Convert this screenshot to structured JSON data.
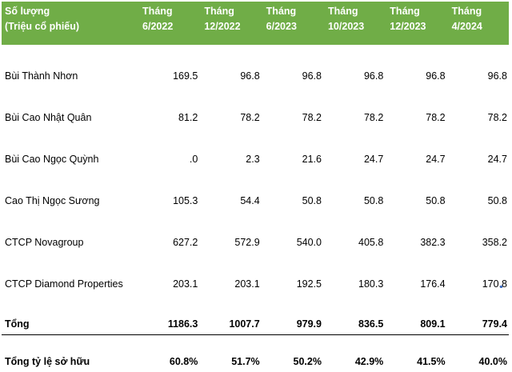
{
  "header": {
    "label_line1": "Số lượng",
    "label_line2": "(Triệu cổ phiếu)",
    "columns": [
      {
        "line1": "Tháng",
        "line2": "6/2022"
      },
      {
        "line1": "Tháng",
        "line2": "12/2022"
      },
      {
        "line1": "Tháng",
        "line2": "6/2023"
      },
      {
        "line1": "Tháng",
        "line2": "10/2023"
      },
      {
        "line1": "Tháng",
        "line2": "12/2023"
      },
      {
        "line1": "Tháng",
        "line2": "4/2024"
      }
    ]
  },
  "rows": [
    {
      "name": "Bùi Thành Nhơn",
      "values": [
        "169.5",
        "96.8",
        "96.8",
        "96.8",
        "96.8",
        "96.8"
      ]
    },
    {
      "name": "Bùi Cao Nhật Quân",
      "values": [
        "81.2",
        "78.2",
        "78.2",
        "78.2",
        "78.2",
        "78.2"
      ]
    },
    {
      "name": "Bùi Cao Ngọc Quỳnh",
      "values": [
        ".0",
        "2.3",
        "21.6",
        "24.7",
        "24.7",
        "24.7"
      ]
    },
    {
      "name": "Cao Thị Ngọc Sương",
      "values": [
        "105.3",
        "54.4",
        "50.8",
        "50.8",
        "50.8",
        "50.8"
      ]
    },
    {
      "name": "CTCP Novagroup",
      "values": [
        "627.2",
        "572.9",
        "540.0",
        "405.8",
        "382.3",
        "358.2"
      ]
    },
    {
      "name": "CTCP Diamond Properties",
      "values": [
        "203.1",
        "203.1",
        "192.5",
        "180.3",
        "176.4",
        "170.8"
      ]
    }
  ],
  "total": {
    "name": "Tổng",
    "values": [
      "1186.3",
      "1007.7",
      "979.9",
      "836.5",
      "809.1",
      "779.4"
    ]
  },
  "ratio": {
    "name": "Tổng tỷ lệ sở hữu",
    "values": [
      "60.8%",
      "51.7%",
      "50.2%",
      "42.9%",
      "41.5%",
      "40.0%"
    ]
  },
  "colors": {
    "header_bg": "#70ad47",
    "header_text": "#ffffff",
    "selection": "#4472c4"
  }
}
